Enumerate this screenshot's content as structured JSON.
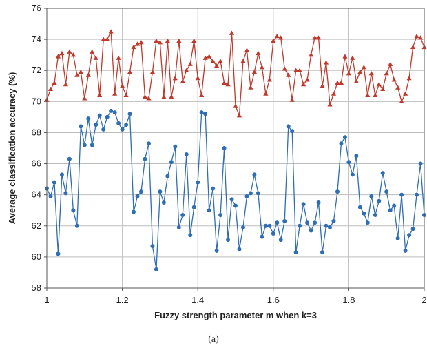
{
  "chart_data": {
    "type": "line",
    "xlabel": "Fuzzy strength parameter m when k=3",
    "ylabel": "Average classification accuracy (%)",
    "caption": "(a)",
    "xlim": [
      1,
      2
    ],
    "ylim": [
      58,
      76
    ],
    "x_ticks": [
      1,
      1.2,
      1.4,
      1.6,
      1.8,
      2
    ],
    "x_tick_labels": [
      "1",
      "1.2",
      "1.4",
      "1.6",
      "1.8",
      "2"
    ],
    "y_ticks": [
      58,
      60,
      62,
      64,
      66,
      68,
      70,
      72,
      74,
      76
    ],
    "y_tick_labels": [
      "58",
      "60",
      "62",
      "64",
      "66",
      "68",
      "70",
      "72",
      "74",
      "76"
    ],
    "grid": true,
    "x": [
      1.0,
      1.01,
      1.02,
      1.03,
      1.04,
      1.05,
      1.06,
      1.07,
      1.08,
      1.09,
      1.1,
      1.11,
      1.12,
      1.13,
      1.14,
      1.15,
      1.16,
      1.17,
      1.18,
      1.19,
      1.2,
      1.21,
      1.22,
      1.23,
      1.24,
      1.25,
      1.26,
      1.27,
      1.28,
      1.29,
      1.3,
      1.31,
      1.32,
      1.33,
      1.34,
      1.35,
      1.36,
      1.37,
      1.38,
      1.39,
      1.4,
      1.41,
      1.42,
      1.43,
      1.44,
      1.45,
      1.46,
      1.47,
      1.48,
      1.49,
      1.5,
      1.51,
      1.52,
      1.53,
      1.54,
      1.55,
      1.56,
      1.57,
      1.58,
      1.59,
      1.6,
      1.61,
      1.62,
      1.63,
      1.64,
      1.65,
      1.66,
      1.67,
      1.68,
      1.69,
      1.7,
      1.71,
      1.72,
      1.73,
      1.74,
      1.75,
      1.76,
      1.77,
      1.78,
      1.79,
      1.8,
      1.81,
      1.82,
      1.83,
      1.84,
      1.85,
      1.86,
      1.87,
      1.88,
      1.89,
      1.9,
      1.91,
      1.92,
      1.93,
      1.94,
      1.95,
      1.96,
      1.97,
      1.98,
      1.99,
      2.0
    ],
    "series": [
      {
        "marker": "triangle",
        "color": "#c0392b",
        "values": [
          70.1,
          70.8,
          71.2,
          72.9,
          73.1,
          71.1,
          73.2,
          73.0,
          71.7,
          71.9,
          70.2,
          71.7,
          73.2,
          72.8,
          70.4,
          74.0,
          74.0,
          74.5,
          70.5,
          72.8,
          71.0,
          70.4,
          71.9,
          73.5,
          73.7,
          73.8,
          70.3,
          70.2,
          71.9,
          73.9,
          73.8,
          70.3,
          73.9,
          70.3,
          71.5,
          73.9,
          71.3,
          72.0,
          72.4,
          73.9,
          71.5,
          70.4,
          72.8,
          72.9,
          72.6,
          72.3,
          72.6,
          71.2,
          71.1,
          74.4,
          69.7,
          69.1,
          72.6,
          73.3,
          70.9,
          71.9,
          73.1,
          72.2,
          70.5,
          71.4,
          73.9,
          74.2,
          74.1,
          72.1,
          71.7,
          70.1,
          72.0,
          72.0,
          71.1,
          71.4,
          73.0,
          74.1,
          74.1,
          71.0,
          72.5,
          69.8,
          70.5,
          71.2,
          71.2,
          72.9,
          71.8,
          72.8,
          71.3,
          71.9,
          72.2,
          70.4,
          71.8,
          70.4,
          71.1,
          70.8,
          71.8,
          72.4,
          71.4,
          70.9,
          70.0,
          70.5,
          71.5,
          73.5,
          74.2,
          74.1,
          73.5
        ]
      },
      {
        "marker": "circle",
        "color": "#2f6db5",
        "values": [
          64.4,
          63.9,
          64.8,
          60.2,
          65.3,
          64.1,
          66.3,
          63.0,
          62.0,
          68.4,
          67.2,
          68.9,
          67.2,
          68.5,
          69.1,
          68.2,
          69.0,
          69.4,
          69.3,
          68.6,
          68.2,
          68.5,
          69.2,
          62.9,
          63.9,
          64.2,
          66.3,
          67.3,
          60.7,
          59.2,
          64.2,
          63.5,
          65.2,
          66.1,
          67.1,
          61.9,
          62.7,
          66.6,
          61.4,
          63.2,
          64.8,
          69.3,
          69.2,
          63.0,
          64.4,
          60.4,
          62.7,
          67.0,
          61.1,
          63.7,
          63.3,
          60.5,
          61.9,
          63.9,
          64.1,
          65.3,
          64.1,
          61.3,
          62.0,
          62.0,
          61.5,
          62.2,
          61.1,
          62.3,
          68.4,
          68.1,
          60.3,
          62.0,
          63.4,
          62.2,
          61.7,
          62.2,
          63.5,
          60.3,
          62.0,
          61.9,
          62.3,
          64.2,
          67.3,
          67.7,
          66.1,
          65.3,
          66.5,
          63.2,
          62.8,
          62.2,
          63.9,
          62.7,
          63.6,
          65.4,
          64.2,
          63.0,
          63.3,
          61.2,
          64.0,
          60.4,
          61.4,
          61.8,
          64.0,
          66.0,
          62.7
        ]
      }
    ]
  }
}
